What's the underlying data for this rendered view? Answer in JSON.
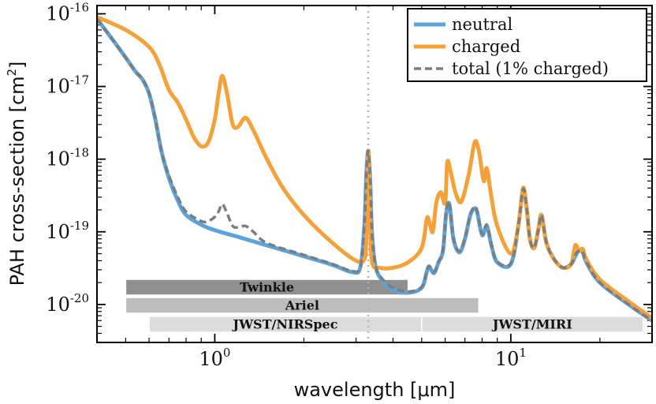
{
  "chart_data": {
    "type": "line",
    "title": "",
    "xlabel": "wavelength [μm]",
    "ylabel_base": "PAH cross-section [cm",
    "ylabel_exp": "2",
    "ylabel_close": "]",
    "xscale": "log",
    "yscale": "log",
    "xlim": [
      0.4,
      30
    ],
    "ylim": [
      3e-21,
      1.3e-16
    ],
    "x_major_ticks": [
      {
        "value": 1,
        "base": "10",
        "exp": "0"
      },
      {
        "value": 10,
        "base": "10",
        "exp": "1"
      }
    ],
    "y_major_ticks": [
      {
        "value": 1e-20,
        "base": "10",
        "exp": "-20"
      },
      {
        "value": 1e-19,
        "base": "10",
        "exp": "-19"
      },
      {
        "value": 1e-18,
        "base": "10",
        "exp": "-18"
      },
      {
        "value": 1e-17,
        "base": "10",
        "exp": "-17"
      },
      {
        "value": 1e-16,
        "base": "10",
        "exp": "-16"
      }
    ],
    "reference_line": {
      "x": 3.3,
      "style": "dotted",
      "color": "#b5b5b5"
    },
    "legend": {
      "position": "top-right"
    },
    "series": [
      {
        "name": "neutral",
        "color": "#5aa3dc",
        "style": "solid",
        "x": [
          0.4,
          0.45,
          0.5,
          0.54,
          0.57,
          0.6,
          0.63,
          0.66,
          0.7,
          0.75,
          0.8,
          0.9,
          1.0,
          1.2,
          1.5,
          2.0,
          2.5,
          2.9,
          3.1,
          3.2,
          3.25,
          3.3,
          3.35,
          3.4,
          3.5,
          3.7,
          4.0,
          4.5,
          5.0,
          5.2,
          5.3,
          5.5,
          5.7,
          5.9,
          6.05,
          6.2,
          6.4,
          6.7,
          7.0,
          7.3,
          7.55,
          7.7,
          8.0,
          8.3,
          8.6,
          9.0,
          10.0,
          10.6,
          11.0,
          11.3,
          11.6,
          12.0,
          12.4,
          12.7,
          13.2,
          14.0,
          15.0,
          16.0,
          16.5,
          17.0,
          17.5,
          18.0,
          20.0,
          25.0,
          30.0
        ],
        "values": [
          8.5e-17,
          4.5e-17,
          2.5e-17,
          1.6e-17,
          1.25e-17,
          8e-18,
          3.5e-18,
          1.3e-18,
          5.5e-19,
          2.7e-19,
          1.7e-19,
          1.25e-19,
          1.05e-19,
          8.5e-20,
          6.5e-20,
          4.6e-20,
          3.5e-20,
          2.8e-20,
          3.2e-20,
          1.2e-19,
          6e-19,
          1.3e-18,
          5e-19,
          9e-20,
          3.2e-20,
          2.1e-20,
          1.6e-20,
          1.45e-20,
          1.7e-20,
          2.8e-20,
          3.3e-20,
          2.7e-20,
          3.8e-20,
          5.5e-20,
          1.8e-19,
          2.4e-19,
          8e-20,
          5.2e-20,
          8e-20,
          1.7e-19,
          2.1e-19,
          1.85e-19,
          9e-20,
          1.2e-19,
          6.5e-20,
          3.8e-20,
          3.6e-20,
          1.2e-19,
          3.8e-19,
          2.2e-19,
          8e-20,
          6e-20,
          1.1e-19,
          1.7e-19,
          7e-20,
          4.2e-20,
          3.2e-20,
          3.6e-20,
          4.6e-20,
          5.5e-20,
          5.2e-20,
          3.8e-20,
          2e-20,
          1e-20,
          6e-21
        ]
      },
      {
        "name": "charged",
        "color": "#f5a13a",
        "style": "solid",
        "x": [
          0.4,
          0.5,
          0.6,
          0.65,
          0.7,
          0.75,
          0.8,
          0.85,
          0.9,
          0.95,
          1.0,
          1.03,
          1.06,
          1.1,
          1.15,
          1.2,
          1.27,
          1.35,
          1.5,
          1.7,
          2.0,
          2.5,
          3.0,
          3.2,
          3.25,
          3.3,
          3.35,
          3.4,
          3.6,
          4.0,
          4.5,
          5.0,
          5.2,
          5.3,
          5.45,
          5.6,
          5.8,
          6.0,
          6.1,
          6.25,
          6.5,
          6.8,
          7.2,
          7.55,
          7.8,
          8.1,
          8.3,
          8.6,
          9.0,
          10.0,
          10.6,
          11.0,
          11.3,
          11.6,
          12.0,
          12.4,
          12.7,
          13.2,
          14.0,
          15.0,
          16.0,
          16.5,
          17.0,
          17.5,
          18.0,
          20.0,
          25.0,
          30.0
        ],
        "values": [
          9e-17,
          6e-17,
          3.5e-17,
          2e-17,
          9e-18,
          6e-18,
          3.5e-18,
          2e-18,
          1.5e-18,
          1.7e-18,
          3.5e-18,
          8e-18,
          1.4e-17,
          8e-18,
          3e-18,
          2.8e-18,
          3.7e-18,
          2.5e-18,
          1e-18,
          4e-19,
          1.7e-19,
          7e-20,
          4e-20,
          4.2e-20,
          8e-20,
          1.3e-18,
          1.5e-19,
          3.8e-20,
          3.2e-20,
          3.2e-20,
          3.8e-20,
          6e-20,
          1.5e-19,
          1.4e-19,
          1e-19,
          2.5e-19,
          3.5e-19,
          2.5e-19,
          9e-19,
          7e-19,
          3.5e-19,
          2.6e-19,
          6e-19,
          1.7e-18,
          1.3e-18,
          5e-19,
          7.5e-19,
          3e-19,
          1.2e-19,
          5e-20,
          1.2e-19,
          4e-19,
          2.2e-19,
          8e-20,
          6e-20,
          1.1e-19,
          1.7e-19,
          7e-20,
          4.2e-20,
          3.2e-20,
          3.6e-20,
          6.5e-20,
          5.5e-20,
          5.8e-20,
          4.2e-20,
          2.2e-20,
          1.1e-20,
          6.5e-21
        ]
      },
      {
        "name": "total (1% charged)",
        "color": "#7d7d7d",
        "style": "dashed",
        "x": [
          0.4,
          0.45,
          0.5,
          0.54,
          0.57,
          0.6,
          0.63,
          0.66,
          0.7,
          0.75,
          0.8,
          0.9,
          0.95,
          1.0,
          1.03,
          1.06,
          1.1,
          1.15,
          1.2,
          1.27,
          1.35,
          1.5,
          2.0,
          2.5,
          2.9,
          3.1,
          3.2,
          3.25,
          3.3,
          3.35,
          3.4,
          3.5,
          3.7,
          4.0,
          4.5,
          5.0,
          5.2,
          5.3,
          5.5,
          5.7,
          5.9,
          6.05,
          6.2,
          6.4,
          6.7,
          7.0,
          7.3,
          7.55,
          7.7,
          8.0,
          8.3,
          8.6,
          9.0,
          10.0,
          10.6,
          11.0,
          11.3,
          11.6,
          12.0,
          12.4,
          12.7,
          13.2,
          14.0,
          15.0,
          16.0,
          16.5,
          17.0,
          17.5,
          18.0,
          20.0,
          25.0,
          30.0
        ],
        "values": [
          8.5e-17,
          4.5e-17,
          2.5e-17,
          1.6e-17,
          1.25e-17,
          8e-18,
          3.5e-18,
          1.3e-18,
          6e-19,
          3e-19,
          1.9e-19,
          1.4e-19,
          1.4e-19,
          1.6e-19,
          1.9e-19,
          2.4e-19,
          1.8e-19,
          1.2e-19,
          1.15e-19,
          1.2e-19,
          1e-19,
          7e-20,
          4.8e-20,
          3.6e-20,
          2.9e-20,
          3.3e-20,
          1.2e-19,
          6e-19,
          1.3e-18,
          5e-19,
          9e-20,
          3.3e-20,
          2.2e-20,
          1.7e-20,
          1.5e-20,
          1.75e-20,
          2.9e-20,
          3.4e-20,
          2.8e-20,
          3.9e-20,
          5.7e-20,
          1.9e-19,
          2.5e-19,
          8.3e-20,
          5.4e-20,
          8.3e-20,
          1.75e-19,
          2.2e-19,
          1.9e-19,
          9.3e-20,
          1.25e-19,
          6.7e-20,
          3.9e-20,
          3.7e-20,
          1.2e-19,
          3.85e-19,
          2.2e-19,
          8e-20,
          6e-20,
          1.1e-19,
          1.7e-19,
          7e-20,
          4.2e-20,
          3.2e-20,
          3.6e-20,
          4.8e-20,
          5.5e-20,
          5.3e-20,
          3.85e-20,
          2e-20,
          1e-20,
          6e-21
        ]
      }
    ],
    "bands": [
      {
        "label": "Twinkle",
        "x_start": 0.5,
        "x_end": 4.5,
        "row": 0,
        "color": "#8f8f8f"
      },
      {
        "label": "Ariel",
        "x_start": 0.5,
        "x_end": 7.8,
        "row": 1,
        "color": "#bdbdbd"
      },
      {
        "label": "JWST/NIRSpec",
        "x_start": 0.6,
        "x_end": 5.0,
        "row": 2,
        "color": "#dcdcdc"
      },
      {
        "label": "JWST/MIRI",
        "x_start": 5.0,
        "x_end": 28.0,
        "row": 2,
        "color": "#dcdcdc"
      }
    ]
  }
}
